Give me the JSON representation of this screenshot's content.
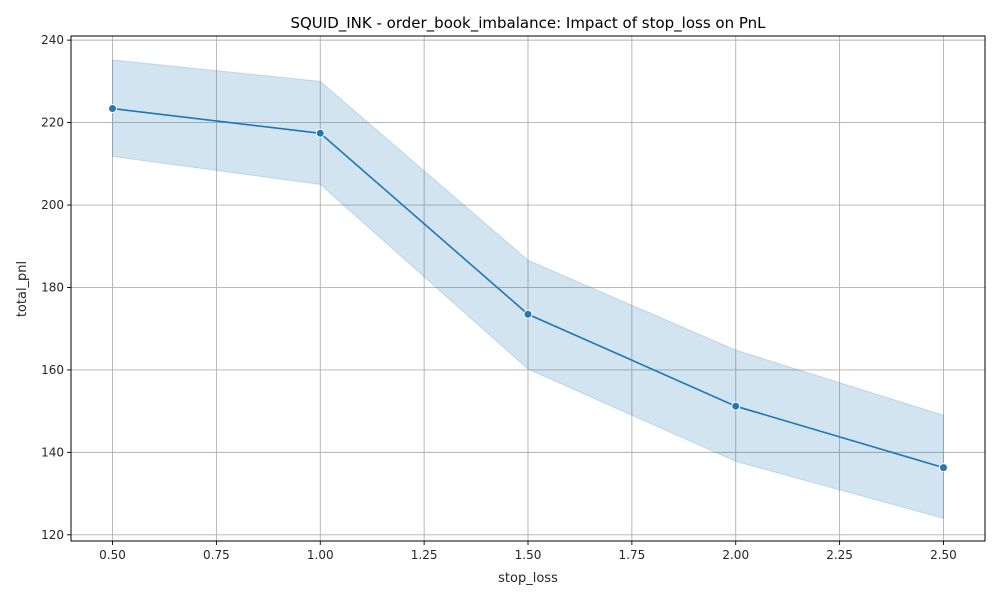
{
  "chart_data": {
    "type": "line",
    "title": "SQUID_INK - order_book_imbalance: Impact of stop_loss on PnL",
    "xlabel": "stop_loss",
    "ylabel": "total_pnl",
    "xlim": [
      0.4,
      2.6
    ],
    "ylim": [
      118.5,
      241
    ],
    "xticks": [
      "0.50",
      "0.75",
      "1.00",
      "1.25",
      "1.50",
      "1.75",
      "2.00",
      "2.25",
      "2.50"
    ],
    "yticks": [
      "120",
      "140",
      "160",
      "180",
      "200",
      "220",
      "240"
    ],
    "grid": true,
    "x": [
      0.5,
      1.0,
      1.5,
      2.0,
      2.5
    ],
    "series": [
      {
        "values": [
          223.4,
          217.4,
          173.5,
          151.2,
          136.3
        ],
        "ci_upper": [
          235.2,
          230.0,
          186.6,
          164.8,
          149.0
        ],
        "ci_lower": [
          211.8,
          205.0,
          160.2,
          137.8,
          124.0
        ]
      }
    ],
    "colors": {
      "line": "#1f77b4",
      "band": "#1f77b4",
      "grid": "#b0b0b0"
    }
  }
}
